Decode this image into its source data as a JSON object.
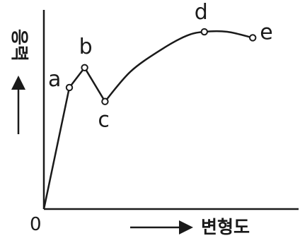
{
  "chart_data": {
    "type": "line",
    "title": "",
    "xlabel": "변형도",
    "ylabel": "응력",
    "origin_label": "0",
    "grid": false,
    "legend": "none",
    "xlim": [
      0,
      10
    ],
    "ylim": [
      0,
      10
    ],
    "points": [
      {
        "label": "a",
        "x": 1.0,
        "y": 6.1
      },
      {
        "label": "b",
        "x": 1.6,
        "y": 7.1
      },
      {
        "label": "c",
        "x": 2.4,
        "y": 5.4
      },
      {
        "label": "d",
        "x": 6.3,
        "y": 8.9
      },
      {
        "label": "e",
        "x": 8.2,
        "y": 8.6
      }
    ],
    "series": [
      {
        "x": [
          0,
          1.0,
          1.6,
          2.4,
          3.4,
          4.6,
          5.6,
          6.3,
          7.2,
          8.2
        ],
        "y": [
          0,
          6.1,
          7.1,
          5.4,
          6.9,
          8.0,
          8.7,
          8.9,
          8.9,
          8.6
        ]
      }
    ],
    "colors": {
      "ink": "#1a1a1a",
      "background": "#ffffff"
    }
  }
}
